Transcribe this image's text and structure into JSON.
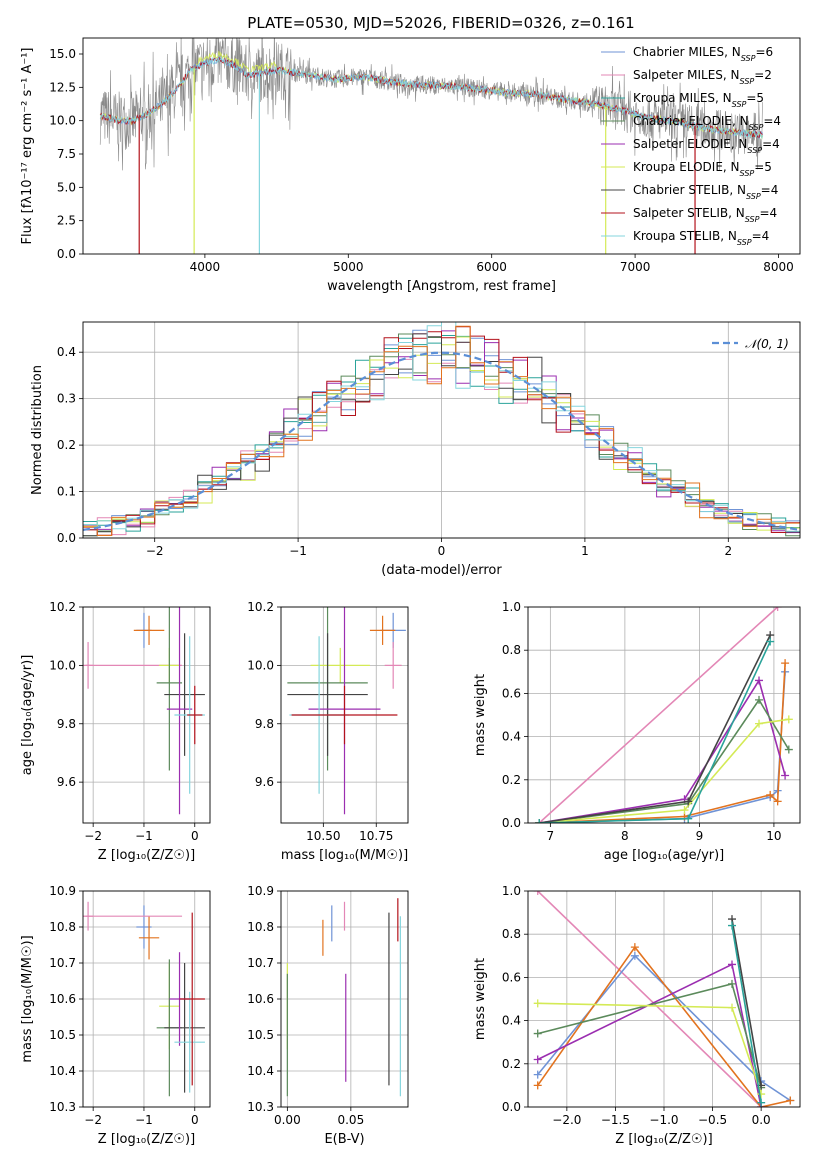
{
  "figure_title": "PLATE=0530, MJD=52026, FIBERID=0326, z=0.161",
  "colors": {
    "Chabrier MILES": "#6f93d6",
    "Salpeter MILES": "#e387b6",
    "Kroupa MILES": "#2aa39a",
    "Chabrier ELODIE": "#5b8a5b",
    "Salpeter ELODIE": "#9b2eb0",
    "Kroupa ELODIE": "#d4ea56",
    "Chabrier STELIB": "#444444",
    "Salpeter STELIB": "#b3131c",
    "Kroupa STELIB": "#86d5dd",
    "orange": "#e2731f",
    "gaussian": "#5b8fd6",
    "spectrum": "#8a8a8a"
  },
  "chart_data": [
    {
      "id": "spectrum",
      "type": "line",
      "xlabel": "wavelength [Angstrom, rest frame]",
      "ylabel": "Flux [fλ10⁻¹⁷ erg cm⁻² s⁻¹ A⁻¹]",
      "xlim": [
        3150,
        8150
      ],
      "ylim": [
        0,
        16.2
      ],
      "xticks": [
        4000,
        5000,
        6000,
        7000,
        8000
      ],
      "yticks": [
        0.0,
        2.5,
        5.0,
        7.5,
        10.0,
        12.5,
        15.0
      ],
      "legend_position": "top-right",
      "legend": [
        {
          "label": "Chabrier MILES, N",
          "sub": "SSP",
          "suffix": "=6",
          "color_key": "Chabrier MILES"
        },
        {
          "label": "Salpeter MILES, N",
          "sub": "SSP",
          "suffix": "=2",
          "color_key": "Salpeter MILES"
        },
        {
          "label": "Kroupa MILES, N",
          "sub": "SSP",
          "suffix": "=5",
          "color_key": "Kroupa MILES"
        },
        {
          "label": "Chabrier ELODIE, N",
          "sub": "SSP",
          "suffix": "=4",
          "color_key": "Chabrier ELODIE"
        },
        {
          "label": "Salpeter ELODIE, N",
          "sub": "SSP",
          "suffix": "=4",
          "color_key": "Salpeter ELODIE"
        },
        {
          "label": "Kroupa ELODIE, N",
          "sub": "SSP",
          "suffix": "=5",
          "color_key": "Kroupa ELODIE"
        },
        {
          "label": "Chabrier STELIB, N",
          "sub": "SSP",
          "suffix": "=4",
          "color_key": "Chabrier STELIB"
        },
        {
          "label": "Salpeter STELIB, N",
          "sub": "SSP",
          "suffix": "=4",
          "color_key": "Salpeter STELIB"
        },
        {
          "label": "Kroupa STELIB, N",
          "sub": "SSP",
          "suffix": "=4",
          "color_key": "Kroupa STELIB"
        }
      ],
      "continuum": {
        "x": [
          3270,
          3400,
          3500,
          3600,
          3700,
          3800,
          3900,
          4000,
          4100,
          4200,
          4300,
          4500,
          4700,
          4900,
          5100,
          5300,
          5500,
          5700,
          5900,
          6100,
          6300,
          6500,
          6700,
          6900,
          7100,
          7300,
          7500,
          7700,
          7900
        ],
        "y": [
          10.4,
          10.0,
          10.0,
          10.5,
          11.3,
          12.3,
          13.8,
          14.3,
          14.6,
          14.2,
          13.4,
          13.8,
          13.5,
          13.1,
          13.3,
          12.9,
          12.7,
          12.6,
          12.4,
          12.1,
          12.0,
          11.6,
          11.3,
          10.8,
          10.2,
          9.9,
          9.4,
          9.1,
          8.9
        ]
      },
      "absorption_lines": [
        {
          "series": "Kroupa ELODIE",
          "x": 3925,
          "y_min": 0
        },
        {
          "series": "Kroupa STELIB",
          "x": 4380,
          "y_min": 0
        },
        {
          "series": "Kroupa ELODIE",
          "x": 6795,
          "y_min": 0
        },
        {
          "series": "Salpeter STELIB",
          "x": 7418,
          "y_min": 0
        },
        {
          "series": "Salpeter STELIB",
          "x": 3542,
          "y_min": 0
        }
      ],
      "spectrum_x_range": [
        3270,
        7890
      ]
    },
    {
      "id": "residuals",
      "type": "histogram",
      "xlabel": "(data-model)/error",
      "ylabel": "Normed distribution",
      "xlim": [
        -2.5,
        2.5
      ],
      "ylim": [
        0,
        0.465
      ],
      "xticks": [
        -2,
        -1,
        0,
        1,
        2
      ],
      "yticks": [
        0.0,
        0.1,
        0.2,
        0.3,
        0.4
      ],
      "legend_position": "top-right",
      "gaussian_label": "𝒩(0, 1)",
      "bin_width": 0.1,
      "series_colors": [
        "Chabrier MILES",
        "Salpeter MILES",
        "Kroupa MILES",
        "Chabrier ELODIE",
        "Salpeter ELODIE",
        "Kroupa ELODIE",
        "Chabrier STELIB",
        "Salpeter STELIB",
        "Kroupa STELIB",
        "orange"
      ]
    },
    {
      "id": "age-vs-Z",
      "type": "scatter",
      "xlabel": "Z [log₁₀(Z/Z☉)]",
      "ylabel": "age  [log₁₀(age/yr)]",
      "xlim": [
        -2.2,
        0.3
      ],
      "ylim": [
        9.46,
        10.2
      ],
      "xticks": [
        -2,
        -1,
        0
      ],
      "yticks": [
        9.6,
        9.8,
        10.0,
        10.2
      ],
      "points": [
        {
          "color": "Chabrier MILES",
          "x": -1.0,
          "y": 10.12,
          "xerr": 0.15,
          "yerr": 0.06
        },
        {
          "color": "orange",
          "x": -0.9,
          "y": 10.12,
          "xerr": 0.3,
          "yerr": 0.05
        },
        {
          "color": "Salpeter MILES",
          "x": -2.1,
          "y": 10.0,
          "xerr": 0.1,
          "yerr": 0.08
        },
        {
          "color": "Salpeter MILES",
          "x": -1.2,
          "y": 10.0,
          "xerr": 0.95,
          "yerr": 0.0
        },
        {
          "color": "Kroupa ELODIE",
          "x": -0.5,
          "y": 10.0,
          "xerr": 0.2,
          "yerr": 0.06
        },
        {
          "color": "Chabrier ELODIE",
          "x": -0.5,
          "y": 9.94,
          "xerr": 0.25,
          "yerr": 0.3
        },
        {
          "color": "Chabrier STELIB",
          "x": -0.2,
          "y": 9.9,
          "xerr": 0.4,
          "yerr": 0.21
        },
        {
          "color": "Salpeter ELODIE",
          "x": -0.3,
          "y": 9.85,
          "xerr": 0.25,
          "yerr": 0.36
        },
        {
          "color": "Kroupa STELIB",
          "x": -0.1,
          "y": 9.83,
          "xerr": 0.3,
          "yerr": 0.27
        },
        {
          "color": "Salpeter STELIB",
          "x": 0.0,
          "y": 9.83,
          "xerr": 0.15,
          "yerr": 0.1
        }
      ]
    },
    {
      "id": "age-vs-mass",
      "type": "scatter",
      "xlabel": "mass [log₁₀(M/M☉)]",
      "ylabel": "",
      "xlim": [
        10.3,
        10.9
      ],
      "ylim": [
        9.46,
        10.2
      ],
      "xticks": [
        10.5,
        10.75
      ],
      "xticklabels": [
        "10.50",
        "10.75"
      ],
      "yticks": [
        9.6,
        9.8,
        10.0,
        10.2
      ],
      "points": [
        {
          "color": "Chabrier MILES",
          "x": 10.83,
          "y": 10.12,
          "xerr": 0.06,
          "yerr": 0.06
        },
        {
          "color": "orange",
          "x": 10.78,
          "y": 10.12,
          "xerr": 0.06,
          "yerr": 0.05
        },
        {
          "color": "Salpeter MILES",
          "x": 10.83,
          "y": 10.0,
          "xerr": 0.04,
          "yerr": 0.08
        },
        {
          "color": "Kroupa ELODIE",
          "x": 10.58,
          "y": 10.0,
          "xerr": 0.14,
          "yerr": 0.06
        },
        {
          "color": "Chabrier ELODIE",
          "x": 10.52,
          "y": 9.94,
          "xerr": 0.19,
          "yerr": 0.3
        },
        {
          "color": "Chabrier STELIB",
          "x": 10.52,
          "y": 9.9,
          "xerr": 0.19,
          "yerr": 0.21
        },
        {
          "color": "Salpeter ELODIE",
          "x": 10.6,
          "y": 9.85,
          "xerr": 0.17,
          "yerr": 0.36
        },
        {
          "color": "Kroupa STELIB",
          "x": 10.48,
          "y": 9.83,
          "xerr": 0.14,
          "yerr": 0.27
        },
        {
          "color": "Salpeter STELIB",
          "x": 10.6,
          "y": 9.83,
          "xerr": 0.25,
          "yerr": 0.1
        }
      ]
    },
    {
      "id": "weight-vs-age",
      "type": "line",
      "xlabel": "age  [log₁₀(age/yr)]",
      "ylabel": "mass weight",
      "xlim": [
        6.7,
        10.35
      ],
      "ylim": [
        0,
        1
      ],
      "xticks": [
        7,
        8,
        9,
        10
      ],
      "yticks": [
        0.0,
        0.2,
        0.4,
        0.6,
        0.8,
        1.0
      ],
      "series": [
        {
          "color": "Salpeter MILES",
          "x": [
            6.85,
            10.05
          ],
          "y": [
            0.0,
            1.0
          ]
        },
        {
          "color": "Chabrier MILES",
          "x": [
            6.85,
            8.8,
            9.95,
            10.05,
            10.15
          ],
          "y": [
            0.0,
            0.02,
            0.12,
            0.15,
            0.7
          ]
        },
        {
          "color": "orange",
          "x": [
            6.85,
            8.8,
            9.95,
            10.05,
            10.15
          ],
          "y": [
            0.0,
            0.03,
            0.13,
            0.1,
            0.74
          ]
        },
        {
          "color": "Salpeter ELODIE",
          "x": [
            6.85,
            8.8,
            9.8,
            10.15
          ],
          "y": [
            0.0,
            0.11,
            0.66,
            0.22
          ]
        },
        {
          "color": "Chabrier ELODIE",
          "x": [
            6.85,
            8.85,
            9.8,
            10.2
          ],
          "y": [
            0.0,
            0.09,
            0.57,
            0.34
          ]
        },
        {
          "color": "Kroupa ELODIE",
          "x": [
            6.85,
            8.8,
            9.8,
            10.2
          ],
          "y": [
            0.0,
            0.06,
            0.46,
            0.48
          ]
        },
        {
          "color": "Chabrier STELIB",
          "x": [
            6.85,
            8.85,
            9.95
          ],
          "y": [
            0.0,
            0.1,
            0.87
          ]
        },
        {
          "color": "Kroupa MILES",
          "x": [
            6.85,
            8.85,
            9.95
          ],
          "y": [
            0.0,
            0.02,
            0.84
          ]
        }
      ]
    },
    {
      "id": "mass-vs-Z",
      "type": "scatter",
      "xlabel": "Z [log₁₀(Z/Z☉)]",
      "ylabel": "mass [log₁₀(M/M☉)]",
      "xlim": [
        -2.2,
        0.3
      ],
      "ylim": [
        10.3,
        10.9
      ],
      "xticks": [
        -2,
        -1,
        0
      ],
      "yticks": [
        10.3,
        10.4,
        10.5,
        10.6,
        10.7,
        10.8,
        10.9
      ],
      "points": [
        {
          "color": "Chabrier MILES",
          "x": -1.0,
          "y": 10.8,
          "xerr": 0.15,
          "yerr": 0.06
        },
        {
          "color": "orange",
          "x": -0.9,
          "y": 10.77,
          "xerr": 0.2,
          "yerr": 0.06
        },
        {
          "color": "Salpeter MILES",
          "x": -2.1,
          "y": 10.83,
          "xerr": 0.1,
          "yerr": 0.04
        },
        {
          "color": "Salpeter MILES",
          "x": -1.2,
          "y": 10.83,
          "xerr": 0.95,
          "yerr": 0.0
        },
        {
          "color": "Kroupa ELODIE",
          "x": -0.5,
          "y": 10.58,
          "xerr": 0.2,
          "yerr": 0.12
        },
        {
          "color": "Chabrier ELODIE",
          "x": -0.5,
          "y": 10.52,
          "xerr": 0.25,
          "yerr": 0.19
        },
        {
          "color": "Chabrier STELIB",
          "x": -0.2,
          "y": 10.52,
          "xerr": 0.4,
          "yerr": 0.18
        },
        {
          "color": "Salpeter ELODIE",
          "x": -0.3,
          "y": 10.6,
          "xerr": 0.2,
          "yerr": 0.13
        },
        {
          "color": "Kroupa STELIB",
          "x": -0.1,
          "y": 10.48,
          "xerr": 0.3,
          "yerr": 0.14
        },
        {
          "color": "Salpeter STELIB",
          "x": -0.05,
          "y": 10.6,
          "xerr": 0.25,
          "yerr": 0.24
        }
      ]
    },
    {
      "id": "mass-vs-EBV",
      "type": "scatter",
      "xlabel": "E(B-V)",
      "ylabel": "",
      "xlim": [
        -0.005,
        0.095
      ],
      "ylim": [
        10.3,
        10.9
      ],
      "xticks": [
        0.0,
        0.05
      ],
      "xticklabels": [
        "0.00",
        "0.05"
      ],
      "yticks": [
        10.3,
        10.4,
        10.5,
        10.6,
        10.7,
        10.8,
        10.9
      ],
      "points": [
        {
          "color": "Kroupa ELODIE",
          "x": 0.0,
          "y": 10.58,
          "xerr": 0,
          "yerr": 0.12
        },
        {
          "color": "Chabrier ELODIE",
          "x": 0.0,
          "y": 10.5,
          "xerr": 0,
          "yerr": 0.17
        },
        {
          "color": "orange",
          "x": 0.028,
          "y": 10.77,
          "xerr": 0,
          "yerr": 0.05
        },
        {
          "color": "Chabrier MILES",
          "x": 0.035,
          "y": 10.81,
          "xerr": 0,
          "yerr": 0.05
        },
        {
          "color": "Salpeter MILES",
          "x": 0.045,
          "y": 10.83,
          "xerr": 0,
          "yerr": 0.04
        },
        {
          "color": "Salpeter ELODIE",
          "x": 0.046,
          "y": 10.52,
          "xerr": 0,
          "yerr": 0.15
        },
        {
          "color": "Chabrier STELIB",
          "x": 0.08,
          "y": 10.6,
          "xerr": 0,
          "yerr": 0.24
        },
        {
          "color": "Salpeter STELIB",
          "x": 0.087,
          "y": 10.82,
          "xerr": 0,
          "yerr": 0.06
        },
        {
          "color": "Kroupa STELIB",
          "x": 0.089,
          "y": 10.58,
          "xerr": 0,
          "yerr": 0.25
        }
      ]
    },
    {
      "id": "weight-vs-Z",
      "type": "line",
      "xlabel": "Z [log₁₀(Z/Z☉)]",
      "ylabel": "mass weight",
      "xlim": [
        -2.4,
        0.4
      ],
      "ylim": [
        0,
        1
      ],
      "xticks": [
        -2.0,
        -1.5,
        -1.0,
        -0.5,
        0.0
      ],
      "xticklabels": [
        "−2.0",
        "−1.5",
        "−1.0",
        "−0.5",
        "0.0"
      ],
      "yticks": [
        0.0,
        0.2,
        0.4,
        0.6,
        0.8,
        1.0
      ],
      "series": [
        {
          "color": "Salpeter MILES",
          "x": [
            -2.3,
            0.0
          ],
          "y": [
            1.0,
            0.0
          ]
        },
        {
          "color": "Chabrier MILES",
          "x": [
            -2.3,
            -1.3,
            0.0,
            0.3
          ],
          "y": [
            0.15,
            0.7,
            0.12,
            0.03
          ]
        },
        {
          "color": "orange",
          "x": [
            -2.3,
            -1.3,
            0.0,
            0.3
          ],
          "y": [
            0.1,
            0.74,
            0.0,
            0.03
          ]
        },
        {
          "color": "Salpeter ELODIE",
          "x": [
            -2.3,
            -0.3,
            0.0
          ],
          "y": [
            0.22,
            0.66,
            0.0
          ]
        },
        {
          "color": "Chabrier ELODIE",
          "x": [
            -2.3,
            -0.3,
            0.0
          ],
          "y": [
            0.34,
            0.57,
            0.09
          ]
        },
        {
          "color": "Kroupa ELODIE",
          "x": [
            -2.3,
            -0.3,
            0.0
          ],
          "y": [
            0.48,
            0.46,
            0.06
          ]
        },
        {
          "color": "Chabrier STELIB",
          "x": [
            -0.3,
            0.0
          ],
          "y": [
            0.87,
            0.1
          ]
        },
        {
          "color": "Kroupa MILES",
          "x": [
            -0.3,
            0.0
          ],
          "y": [
            0.84,
            0.02
          ]
        }
      ]
    }
  ]
}
